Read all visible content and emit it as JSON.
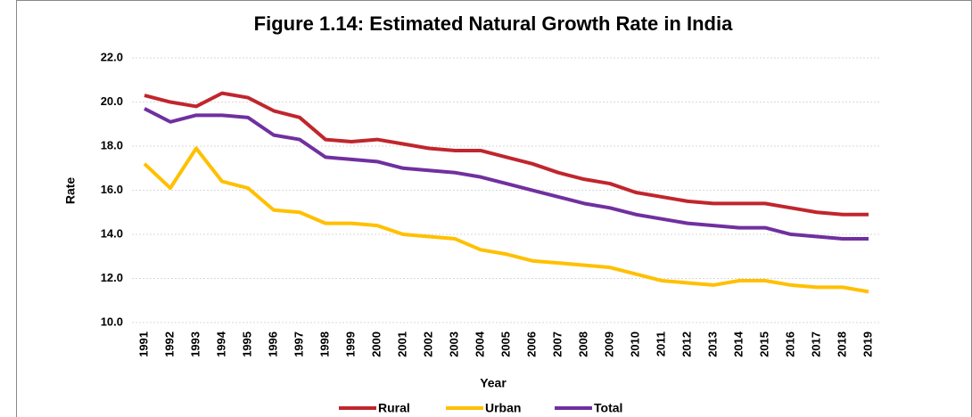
{
  "chart_data": {
    "type": "line",
    "title": "Figure 1.14: Estimated Natural Growth Rate in India",
    "x_label": "Year",
    "y_label": "Rate",
    "categories": [
      "1991",
      "1992",
      "1993",
      "1994",
      "1995",
      "1996",
      "1997",
      "1998",
      "1999",
      "2000",
      "2001",
      "2002",
      "2003",
      "2004",
      "2005",
      "2006",
      "2007",
      "2008",
      "2009",
      "2010",
      "2011",
      "2012",
      "2013",
      "2014",
      "2015",
      "2016",
      "2017",
      "2018",
      "2019"
    ],
    "series": [
      {
        "name": "Rural",
        "color": "#c0262d",
        "values": [
          20.3,
          20.0,
          19.8,
          20.4,
          20.2,
          19.6,
          19.3,
          18.3,
          18.2,
          18.3,
          18.1,
          17.9,
          17.8,
          17.8,
          17.5,
          17.2,
          16.8,
          16.5,
          16.3,
          15.9,
          15.7,
          15.5,
          15.4,
          15.4,
          15.4,
          15.2,
          15.0,
          14.9,
          14.9
        ]
      },
      {
        "name": "Urban",
        "color": "#ffc000",
        "values": [
          17.2,
          16.1,
          17.9,
          16.4,
          16.1,
          15.1,
          15.0,
          14.5,
          14.5,
          14.4,
          14.0,
          13.9,
          13.8,
          13.3,
          13.1,
          12.8,
          12.7,
          12.6,
          12.5,
          12.2,
          11.9,
          11.8,
          11.7,
          11.9,
          11.9,
          11.7,
          11.6,
          11.6,
          11.4
        ]
      },
      {
        "name": "Total",
        "color": "#7030a0",
        "values": [
          19.7,
          19.1,
          19.4,
          19.4,
          19.3,
          18.5,
          18.3,
          17.5,
          17.4,
          17.3,
          17.0,
          16.9,
          16.8,
          16.6,
          16.3,
          16.0,
          15.7,
          15.4,
          15.2,
          14.9,
          14.7,
          14.5,
          14.4,
          14.3,
          14.3,
          14.0,
          13.9,
          13.8,
          13.8
        ]
      }
    ],
    "ylim": [
      10,
      22
    ],
    "yticks": [
      {
        "value": 10,
        "label": "10.0"
      },
      {
        "value": 12,
        "label": "12.0"
      },
      {
        "value": 14,
        "label": "14.0"
      },
      {
        "value": 16,
        "label": "16.0"
      },
      {
        "value": 18,
        "label": "18.0"
      },
      {
        "value": 20,
        "label": "20.0"
      },
      {
        "value": 22,
        "label": "22.0"
      }
    ],
    "grid": true,
    "legend": "bottom"
  }
}
